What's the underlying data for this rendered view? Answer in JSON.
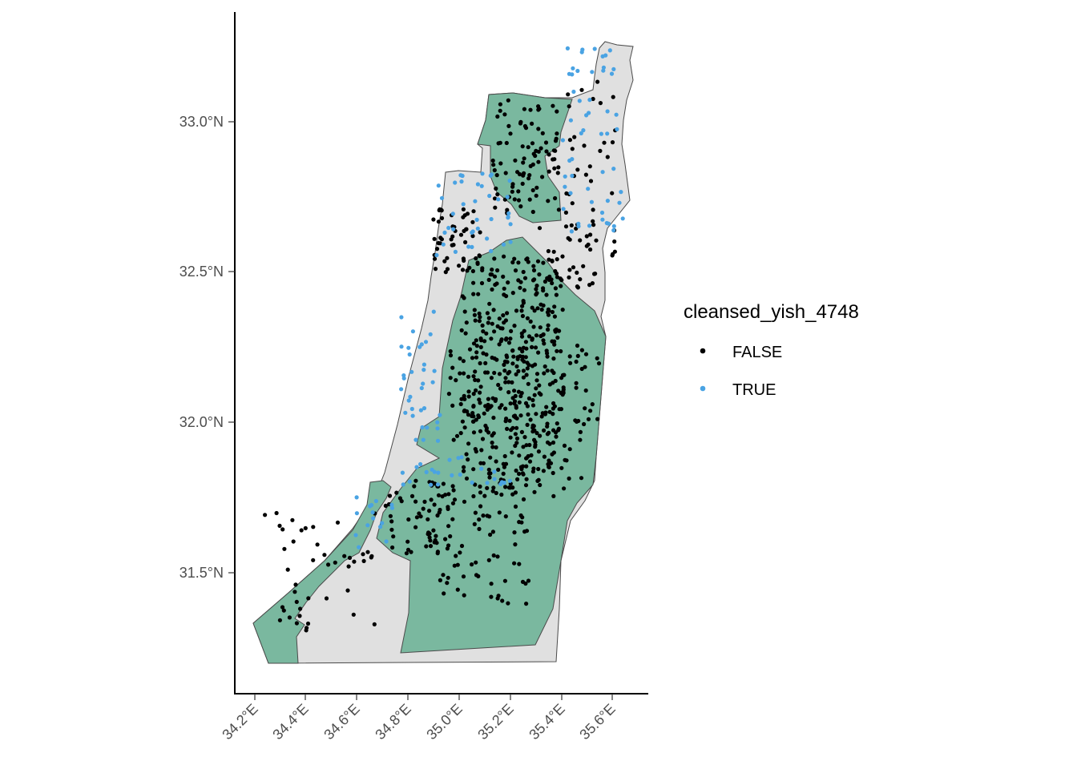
{
  "map": {
    "x_ticks": [
      "34.2°E",
      "34.4°E",
      "34.6°E",
      "34.8°E",
      "35.0°E",
      "35.2°E",
      "35.4°E",
      "35.6°E"
    ],
    "y_ticks": [
      "33.0°N",
      "32.5°N",
      "32.0°N",
      "31.5°N"
    ],
    "x_range": [
      34.12,
      35.73
    ],
    "y_range": [
      31.13,
      33.35
    ],
    "region_colors": {
      "green": "#7ab89f",
      "grey": "#e0e0e0",
      "outline": "#4a4a4a"
    }
  },
  "legend": {
    "title": "cleansed_yish_4748",
    "items": [
      {
        "label": "FALSE",
        "color": "#000000"
      },
      {
        "label": "TRUE",
        "color": "#4aa3e3"
      }
    ]
  }
}
